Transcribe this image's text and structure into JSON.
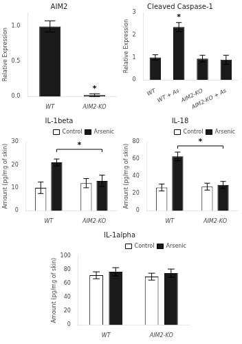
{
  "chart_data": [
    {
      "type": "bar",
      "title": "AIM2",
      "categories": [
        "WT",
        "AIM2-KO"
      ],
      "values": [
        1.0,
        0.02
      ],
      "errors": [
        0.08,
        0.02
      ],
      "color": "#1a1a1a",
      "y_label": "Relative Expression",
      "ylim": [
        0,
        1.2
      ],
      "yticks": [
        {
          "value": 0,
          "label": "0.0"
        },
        0.5,
        {
          "value": 1,
          "label": "1.0"
        }
      ],
      "grid": false,
      "annotations": [
        {
          "text": "*",
          "x": "AIM2-KO",
          "y": 0.06
        }
      ]
    },
    {
      "type": "bar",
      "title": "Cleaved Caspase-1",
      "categories": [
        "WT",
        "WT + As",
        "AIM2-KO",
        "AIM2-KO + As"
      ],
      "values": [
        1.0,
        2.35,
        0.95,
        0.9
      ],
      "errors": [
        0.12,
        0.2,
        0.15,
        0.2
      ],
      "color": "#1a1a1a",
      "y_label": "Relative Expression",
      "ylim": [
        0,
        3.0
      ],
      "yticks": [
        0,
        1,
        2,
        3
      ],
      "grid": false,
      "annotations": [
        {
          "text": "*",
          "x": "WT + As",
          "y": 2.6
        }
      ]
    },
    {
      "type": "bar",
      "title": "IL-1beta",
      "categories": [
        "WT",
        "AIM2-KO"
      ],
      "series": [
        {
          "name": "Control",
          "color": "#ffffff",
          "values": [
            10.0,
            12.0
          ],
          "errors": [
            2.5,
            2.0
          ]
        },
        {
          "name": "Arsenic",
          "color": "#1a1a1a",
          "values": [
            21.0,
            13.0
          ],
          "errors": [
            1.5,
            2.5
          ]
        }
      ],
      "y_label": "Amount (pg/mg of skin)",
      "ylim": [
        0,
        30
      ],
      "yticks": [
        0,
        10,
        20,
        30
      ],
      "grid": false,
      "legend": "upper right",
      "annotations": [
        {
          "text": "*",
          "x1": "WT",
          "x2": "AIM2-KO",
          "series": "Arsenic",
          "y": 25.5
        }
      ]
    },
    {
      "type": "bar",
      "title": "IL-18",
      "categories": [
        "WT",
        "AIM2-KO"
      ],
      "series": [
        {
          "name": "Control",
          "color": "#ffffff",
          "values": [
            27.0,
            28.0
          ],
          "errors": [
            4.0,
            4.0
          ]
        },
        {
          "name": "Arsenic",
          "color": "#1a1a1a",
          "values": [
            63.0,
            30.0
          ],
          "errors": [
            5.0,
            4.0
          ]
        }
      ],
      "y_label": "Amount (pg/mg of skin)",
      "ylim": [
        0,
        80
      ],
      "yticks": [
        0,
        20,
        40,
        60,
        80
      ],
      "grid": false,
      "legend": "upper right",
      "annotations": [
        {
          "text": "*",
          "x1": "WT",
          "x2": "AIM2-KO",
          "series": "Arsenic",
          "y": 72
        }
      ]
    },
    {
      "type": "bar",
      "title": "IL-1alpha",
      "categories": [
        "WT",
        "AIM2-KO"
      ],
      "series": [
        {
          "name": "Control",
          "color": "#ffffff",
          "values": [
            72.0,
            70.0
          ],
          "errors": [
            5.0,
            5.0
          ]
        },
        {
          "name": "Arsenic",
          "color": "#1a1a1a",
          "values": [
            77.0,
            75.0
          ],
          "errors": [
            6.0,
            6.0
          ]
        }
      ],
      "y_label": "Amount (pg/mg of skin)",
      "ylim": [
        0,
        100
      ],
      "yticks": [
        0,
        20,
        40,
        60,
        80,
        100
      ],
      "grid": false,
      "legend": "upper right"
    }
  ]
}
